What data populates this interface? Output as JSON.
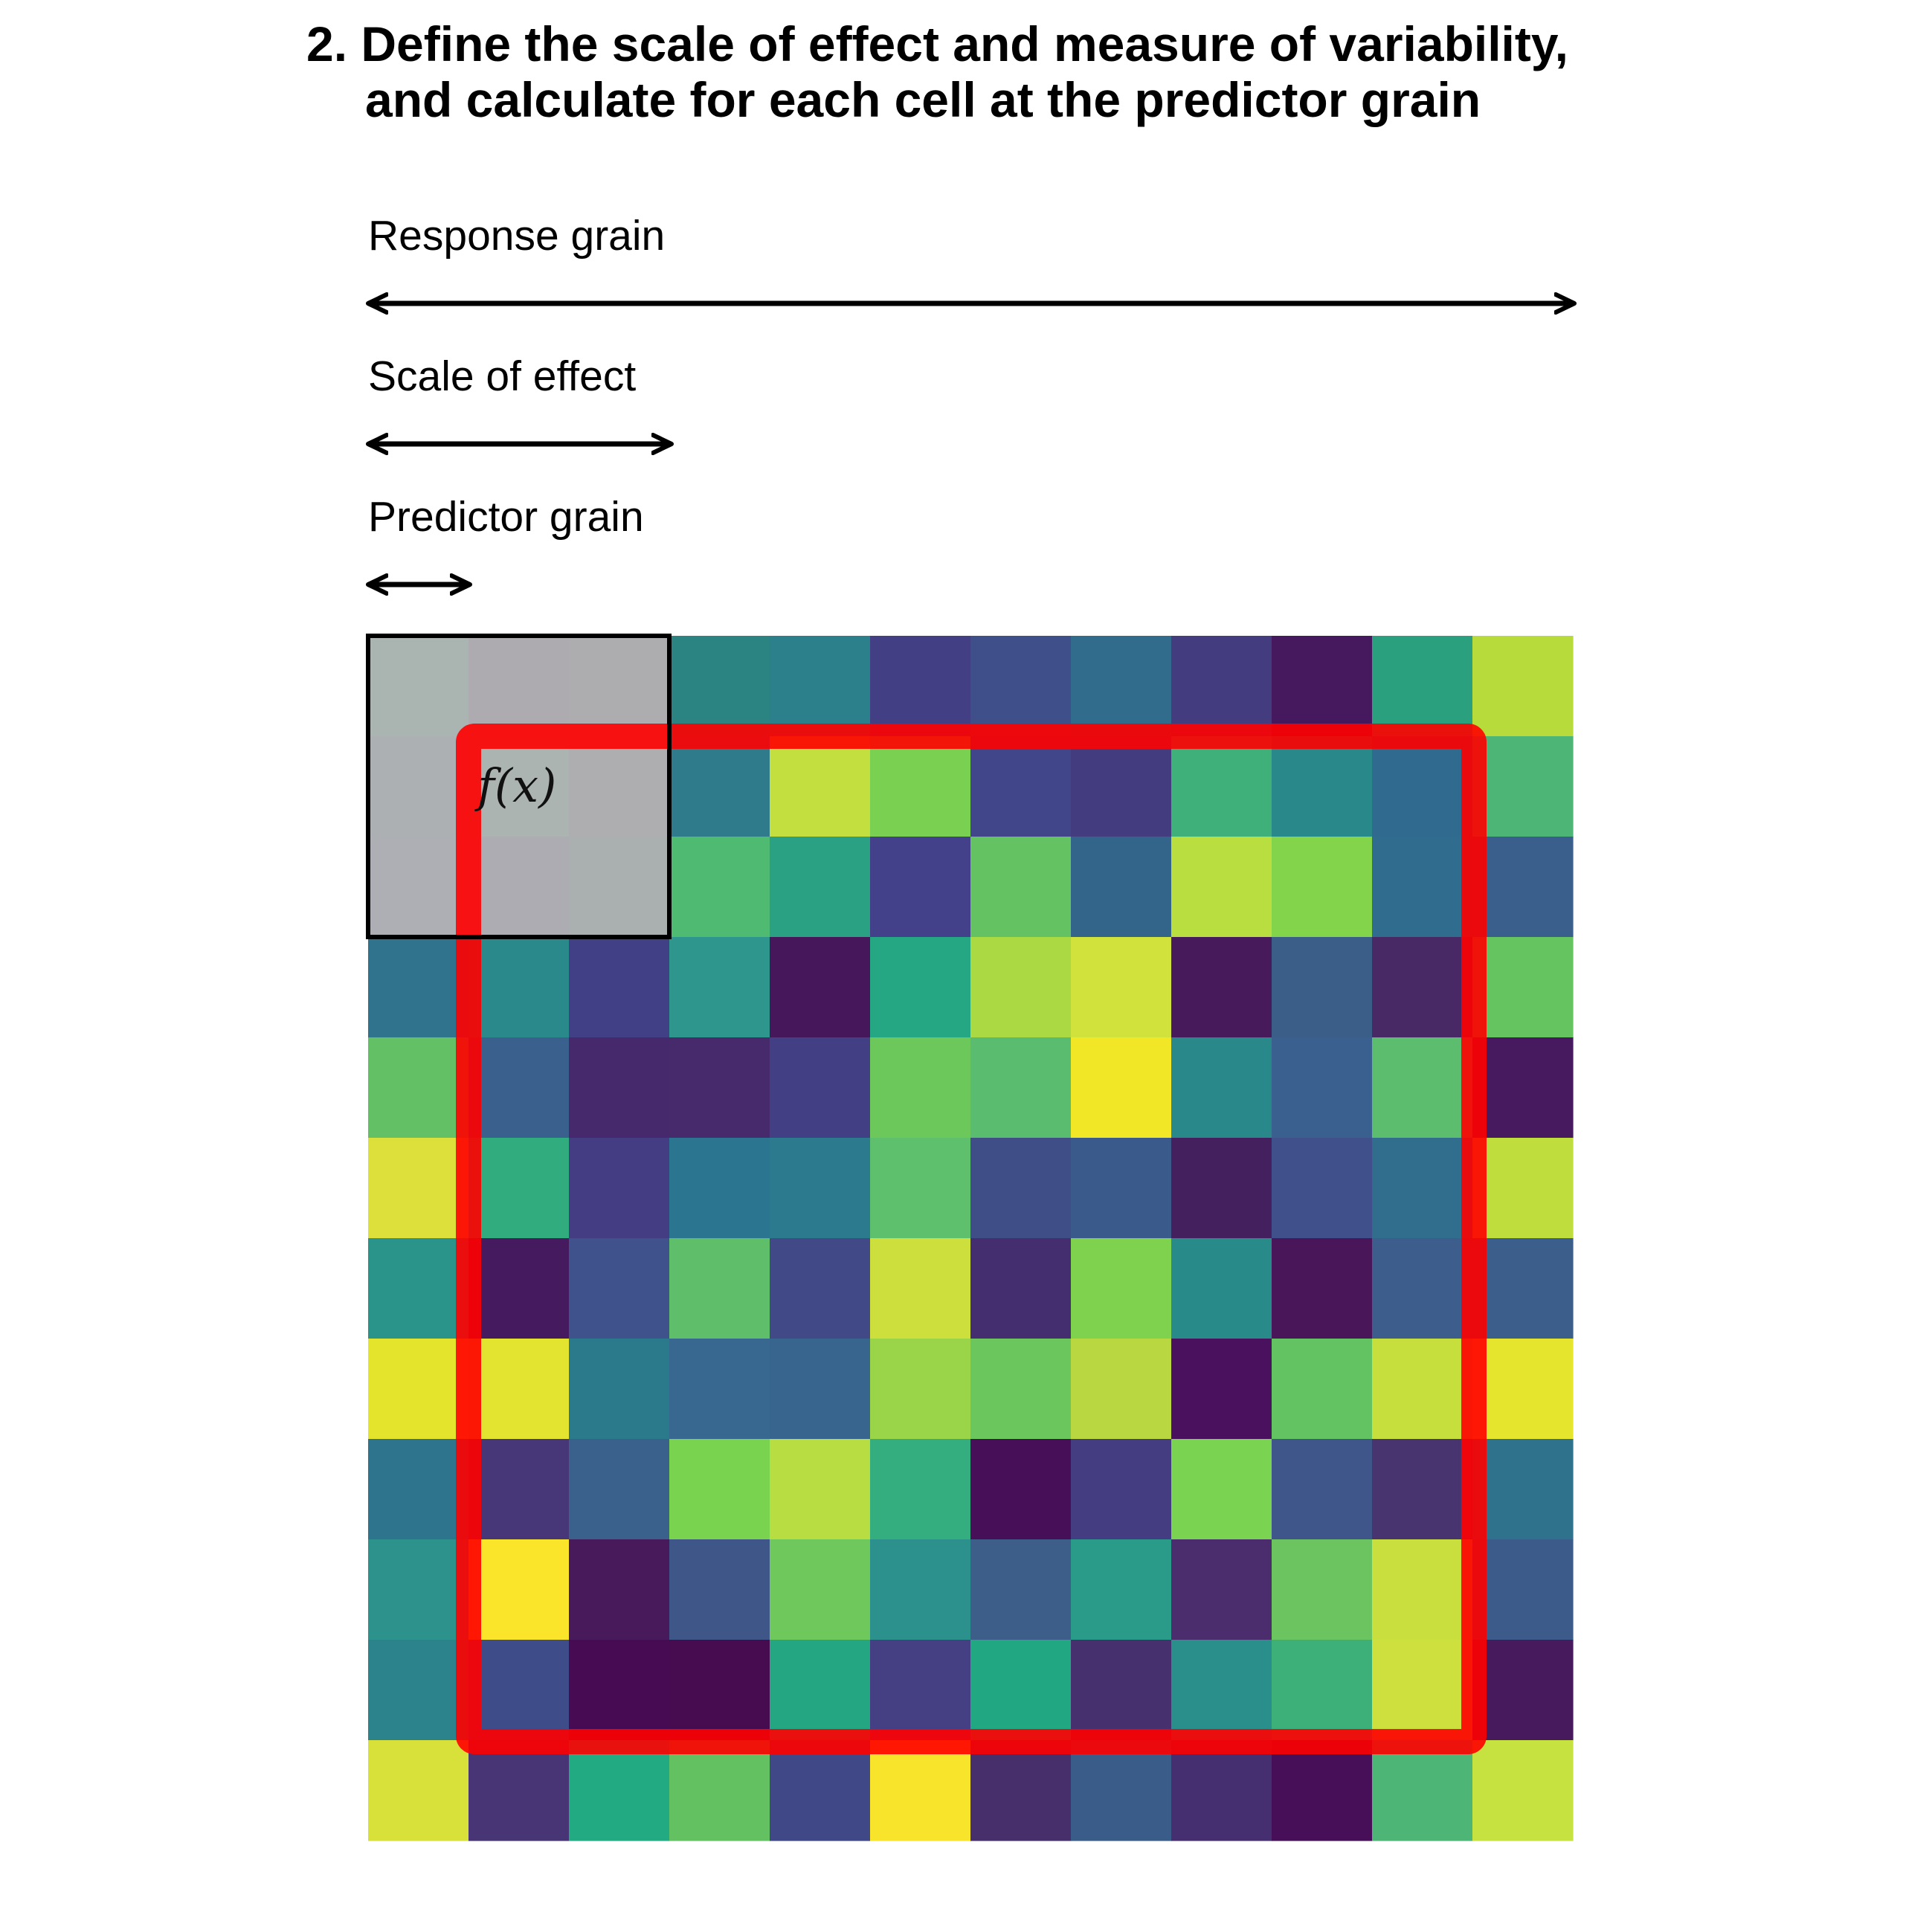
{
  "title": {
    "line1": "2. Define the scale of effect and measure of variability,",
    "line2": "and calculate for each cell at the predictor grain"
  },
  "labels": {
    "response_grain": "Response grain",
    "scale_of_effect": "Scale of effect",
    "predictor_grain": "Predictor grain",
    "function": "f(x)"
  },
  "colors": {
    "frame": "#ff0000",
    "window_outline": "#000000",
    "window_overlay": "#b4b4b4"
  },
  "grid": {
    "rows": 12,
    "cols": 12,
    "cells": [
      [
        "#8fb4aa",
        "#9c94a6",
        "#9b9ba7",
        "#2b8382",
        "#2c808b",
        "#423f85",
        "#3f4f89",
        "#316c8d",
        "#433d80",
        "#46195e",
        "#2aa07f",
        "#b7db3b"
      ],
      [
        "#9aa6ae",
        "#96b5ae",
        "#9e9ba7",
        "#2f7a8b",
        "#c2df3f",
        "#7ad151",
        "#41468a",
        "#433d80",
        "#3fb07a",
        "#29898a",
        "#306a8e",
        "#4db576"
      ],
      [
        "#9ca1b3",
        "#9c97ab",
        "#91a4a6",
        "#4fbb72",
        "#2aa183",
        "#424189",
        "#64c262",
        "#33658a",
        "#b8de40",
        "#84d44b",
        "#2f6c8e",
        "#3b5f8c"
      ],
      [
        "#30738d",
        "#2a898a",
        "#413f86",
        "#2e968c",
        "#46175b",
        "#24a782",
        "#abd944",
        "#d1e23c",
        "#471a5c",
        "#3b5e89",
        "#482965",
        "#66c460"
      ],
      [
        "#63c064",
        "#3a618e",
        "#46286c",
        "#462a6c",
        "#433f84",
        "#6dc85c",
        "#59bc6e",
        "#f1e727",
        "#29898a",
        "#3a6090",
        "#5cbd6e",
        "#47195e"
      ],
      [
        "#dde03a",
        "#31ac7e",
        "#443d83",
        "#2c7590",
        "#2c7a8e",
        "#5ebf6c",
        "#3f4e87",
        "#3b5a8c",
        "#45205f",
        "#3f508a",
        "#316e8e",
        "#c0dd3e"
      ],
      [
        "#2a938a",
        "#461a5f",
        "#3f528b",
        "#5fbe6a",
        "#414a86",
        "#cddf3c",
        "#452e70",
        "#7fd24e",
        "#298a8a",
        "#481659",
        "#3d5d8c",
        "#3b5e8a"
      ],
      [
        "#e4e42c",
        "#e2e42f",
        "#2b7a8c",
        "#386890",
        "#38658e",
        "#9ad448",
        "#6bc65d",
        "#b8d740",
        "#4a115e",
        "#63c362",
        "#c6df3c",
        "#e5e52e"
      ],
      [
        "#2f748d",
        "#473779",
        "#3a618c",
        "#7ad34f",
        "#b8dd42",
        "#34ae7e",
        "#480f59",
        "#443d82",
        "#7bd352",
        "#3f568a",
        "#48346f",
        "#2e728c"
      ],
      [
        "#2c928b",
        "#fbe52a",
        "#491a5b",
        "#3e5788",
        "#6fc85c",
        "#2c908c",
        "#3c5e89",
        "#2a9b88",
        "#4b2d6e",
        "#6bc45f",
        "#c8df3e",
        "#3c5b8a"
      ],
      [
        "#2c838c",
        "#3e4c8a",
        "#460b52",
        "#470b50",
        "#23a681",
        "#453f83",
        "#21a782",
        "#46306e",
        "#2a8f8a",
        "#3db079",
        "#cde03d",
        "#471a5d"
      ],
      [
        "#d8e03a",
        "#473575",
        "#22aa82",
        "#63c162",
        "#404887",
        "#f8e42a",
        "#472f6b",
        "#3a5c89",
        "#452f70",
        "#470f58",
        "#4db575",
        "#c6e240"
      ]
    ]
  }
}
